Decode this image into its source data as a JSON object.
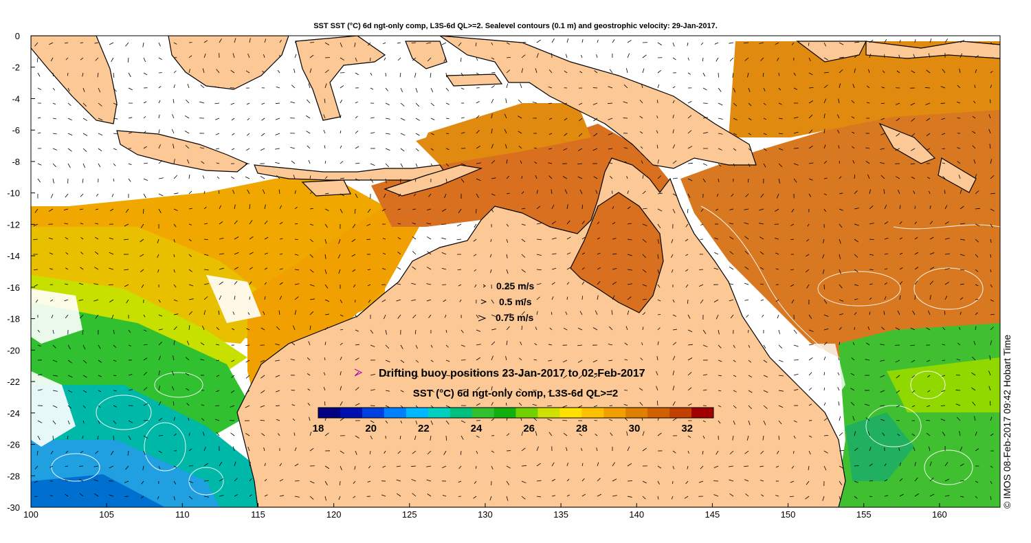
{
  "map": {
    "title": "SST SST (°C) 6d ngt-only comp, L3S-6d QL>=2. Sealevel contours (0.1 m) and geostrophic velocity: 29-Jan-2017.",
    "x_ticks": [
      "100",
      "105",
      "110",
      "115",
      "120",
      "125",
      "130",
      "135",
      "140",
      "145",
      "150",
      "155",
      "160"
    ],
    "y_ticks": [
      "0",
      "-2",
      "-4",
      "-6",
      "-8",
      "-10",
      "-12",
      "-14",
      "-16",
      "-18",
      "-20",
      "-22",
      "-24",
      "-26",
      "-28",
      "-30"
    ],
    "lon_range": [
      100,
      164
    ],
    "lat_range": [
      -30,
      0
    ],
    "side_label": "© IMOS 08-Feb-2017 09:42 Hobart Time"
  },
  "velocity_key": [
    {
      "label": "0.25 m/s"
    },
    {
      "label": "0.5 m/s"
    },
    {
      "label": "0.75 m/s"
    }
  ],
  "buoy_legend": {
    "label": "Drifting buoy positions 23-Jan-2017 to 02-Feb-2017",
    "marker_color": "#cc00cc"
  },
  "colorbar": {
    "title": "SST (°C) 6d ngt-only comp, L3S-6d QL>=2",
    "min": 18,
    "max": 33,
    "ticks": [
      "18",
      "20",
      "22",
      "24",
      "26",
      "28",
      "30",
      "32"
    ],
    "colors": [
      "#000080",
      "#0010b0",
      "#0040e0",
      "#0080ff",
      "#00b8ff",
      "#00d0c0",
      "#00c080",
      "#30c030",
      "#10b010",
      "#70d000",
      "#d0e000",
      "#ffe000",
      "#ffc000",
      "#f0a000",
      "#e08000",
      "#d06000",
      "#c04000",
      "#a00000"
    ]
  },
  "colors": {
    "land": "#fcc895",
    "coast": "#000000",
    "cloud": "#ffffff",
    "contour": "#ffffff",
    "frame": "#000000"
  }
}
